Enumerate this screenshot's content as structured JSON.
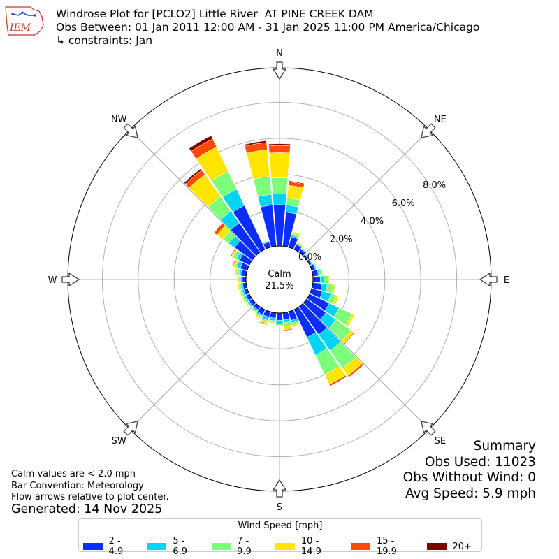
{
  "header": {
    "title_line1": "Windrose Plot for [PCLO2] Little River  AT PINE CREEK DAM",
    "title_line2": "Obs Between: 01 Jan 2011 12:00 AM - 31 Jan 2025 11:00 PM America/Chicago",
    "title_line3": "↳ constraints: Jan",
    "logo_text": "IEM"
  },
  "notes": {
    "calm_note": "Calm values are < 2.0 mph",
    "bar_convention": "Bar Convention: Meteorology",
    "flow_note": "Flow arrows relative to plot center.",
    "generated": "Generated: 14 Nov 2025"
  },
  "summary": {
    "title": "Summary",
    "obs_used": "Obs Used: 11023",
    "obs_without_wind": "Obs Without Wind: 0",
    "avg_speed": "Avg Speed: 5.9 mph"
  },
  "chart_data": {
    "type": "windrose",
    "direction_labels": [
      "N",
      "NE",
      "E",
      "SE",
      "S",
      "SW",
      "W",
      "NW"
    ],
    "direction_angles_deg": [
      0,
      45,
      90,
      135,
      180,
      225,
      270,
      315
    ],
    "radial_tick_values": [
      0,
      2,
      4,
      6,
      8
    ],
    "radial_tick_labels": [
      "0.0%",
      "2.0%",
      "4.0%",
      "6.0%",
      "8.0%"
    ],
    "calm_label": "Calm",
    "calm_value": "21.5%",
    "legend_title": "Wind Speed [mph]",
    "bins": [
      {
        "label": "2 - 4.9",
        "color": "#0b2eff"
      },
      {
        "label": "5 - 6.9",
        "color": "#00d4f3"
      },
      {
        "label": "7 - 9.9",
        "color": "#7dfe7a"
      },
      {
        "label": "10 - 14.9",
        "color": "#ffe500"
      },
      {
        "label": "15 - 19.9",
        "color": "#ff4b00"
      },
      {
        "label": "20+",
        "color": "#7f0000"
      }
    ],
    "sectors": [
      {
        "dir": 0,
        "values": [
          2.3,
          0.6,
          0.9,
          1.4,
          0.4,
          0.1
        ]
      },
      {
        "dir": 10,
        "values": [
          1.9,
          0.4,
          0.4,
          0.7,
          0.2,
          0.05
        ]
      },
      {
        "dir": 20,
        "values": [
          0.6,
          0.1,
          0.1,
          0.1,
          0.0,
          0.0
        ]
      },
      {
        "dir": 30,
        "values": [
          0.3,
          0.05,
          0.05,
          0.05,
          0.0,
          0.0
        ]
      },
      {
        "dir": 40,
        "values": [
          0.2,
          0.05,
          0.0,
          0.0,
          0.0,
          0.0
        ]
      },
      {
        "dir": 50,
        "values": [
          0.1,
          0.05,
          0.0,
          0.0,
          0.0,
          0.0
        ]
      },
      {
        "dir": 60,
        "values": [
          0.1,
          0.05,
          0.0,
          0.0,
          0.0,
          0.0
        ]
      },
      {
        "dir": 70,
        "values": [
          0.2,
          0.05,
          0.05,
          0.0,
          0.0,
          0.0
        ]
      },
      {
        "dir": 80,
        "values": [
          0.3,
          0.1,
          0.1,
          0.05,
          0.0,
          0.0
        ]
      },
      {
        "dir": 90,
        "values": [
          0.4,
          0.2,
          0.25,
          0.05,
          0.0,
          0.0
        ]
      },
      {
        "dir": 100,
        "values": [
          0.5,
          0.3,
          0.35,
          0.1,
          0.0,
          0.0
        ]
      },
      {
        "dir": 110,
        "values": [
          0.6,
          0.5,
          0.3,
          0.15,
          0.0,
          0.0
        ]
      },
      {
        "dir": 120,
        "values": [
          1.2,
          0.6,
          0.8,
          0.15,
          0.0,
          0.0
        ]
      },
      {
        "dir": 130,
        "values": [
          1.3,
          0.7,
          1.0,
          0.2,
          0.05,
          0.0
        ]
      },
      {
        "dir": 140,
        "values": [
          1.9,
          1.1,
          1.2,
          0.5,
          0.1,
          0.0
        ]
      },
      {
        "dir": 150,
        "values": [
          1.7,
          1.1,
          1.2,
          0.6,
          0.1,
          0.0
        ]
      },
      {
        "dir": 160,
        "values": [
          0.5,
          0.15,
          0.1,
          0.1,
          0.0,
          0.0
        ]
      },
      {
        "dir": 170,
        "values": [
          0.4,
          0.15,
          0.2,
          0.2,
          0.05,
          0.0
        ]
      },
      {
        "dir": 180,
        "values": [
          0.4,
          0.2,
          0.1,
          0.05,
          0.0,
          0.0
        ]
      },
      {
        "dir": 190,
        "values": [
          0.3,
          0.15,
          0.1,
          0.05,
          0.0,
          0.0
        ]
      },
      {
        "dir": 200,
        "values": [
          0.3,
          0.2,
          0.1,
          0.1,
          0.05,
          0.0
        ]
      },
      {
        "dir": 210,
        "values": [
          0.3,
          0.1,
          0.05,
          0.1,
          0.0,
          0.0
        ]
      },
      {
        "dir": 220,
        "values": [
          0.2,
          0.1,
          0.05,
          0.05,
          0.0,
          0.0
        ]
      },
      {
        "dir": 230,
        "values": [
          0.2,
          0.1,
          0.05,
          0.05,
          0.0,
          0.0
        ]
      },
      {
        "dir": 240,
        "values": [
          0.2,
          0.1,
          0.1,
          0.05,
          0.0,
          0.0
        ]
      },
      {
        "dir": 250,
        "values": [
          0.2,
          0.1,
          0.1,
          0.05,
          0.0,
          0.0
        ]
      },
      {
        "dir": 260,
        "values": [
          0.2,
          0.1,
          0.1,
          0.1,
          0.0,
          0.0
        ]
      },
      {
        "dir": 270,
        "values": [
          0.2,
          0.1,
          0.1,
          0.1,
          0.0,
          0.0
        ]
      },
      {
        "dir": 280,
        "values": [
          0.3,
          0.1,
          0.15,
          0.1,
          0.0,
          0.0
        ]
      },
      {
        "dir": 290,
        "values": [
          0.4,
          0.2,
          0.1,
          0.1,
          0.05,
          0.0
        ]
      },
      {
        "dir": 300,
        "values": [
          0.6,
          0.2,
          0.2,
          0.1,
          0.05,
          0.0
        ]
      },
      {
        "dir": 310,
        "values": [
          1.2,
          0.4,
          0.4,
          0.4,
          0.2,
          0.0
        ]
      },
      {
        "dir": 320,
        "values": [
          2.0,
          0.8,
          1.0,
          1.5,
          0.3,
          0.1
        ]
      },
      {
        "dir": 330,
        "values": [
          2.7,
          1.0,
          1.1,
          1.5,
          0.5,
          0.2
        ]
      },
      {
        "dir": 340,
        "values": [
          0.3,
          0.05,
          0.0,
          0.0,
          0.0,
          0.0
        ]
      },
      {
        "dir": 350,
        "values": [
          2.3,
          0.6,
          1.0,
          1.5,
          0.4,
          0.1
        ]
      }
    ]
  }
}
